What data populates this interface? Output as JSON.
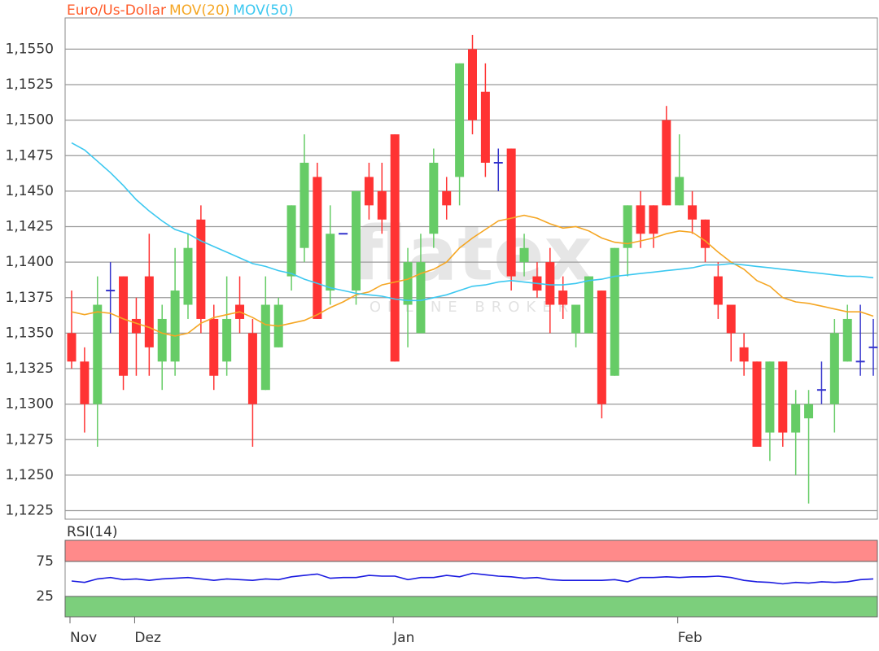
{
  "chart_data": [
    {
      "type": "candlestick",
      "series": [
        {
          "name": "Euro/Us-Dollar",
          "color": "#ff5a28",
          "colors": {
            "up": "#66cc66",
            "down": "#ff3333",
            "unchanged": "#3333cc"
          },
          "open": [
            1.135,
            1.133,
            1.13,
            1.138,
            1.139,
            1.136,
            1.139,
            1.133,
            1.133,
            1.137,
            1.143,
            1.136,
            1.133,
            1.137,
            1.135,
            1.131,
            1.134,
            1.139,
            1.141,
            1.146,
            1.138,
            1.142,
            1.138,
            1.146,
            1.145,
            1.149,
            1.137,
            1.135,
            1.142,
            1.145,
            1.146,
            1.155,
            1.152,
            1.147,
            1.148,
            1.14,
            1.139,
            1.14,
            1.138,
            1.135,
            1.135,
            1.138,
            1.132,
            1.141,
            1.144,
            1.144,
            1.15,
            1.144,
            1.144,
            1.143,
            1.139,
            1.137,
            1.134,
            1.133,
            1.128,
            1.133,
            1.128,
            1.129,
            1.131,
            1.13,
            1.133,
            1.133,
            1.134
          ],
          "high": [
            1.138,
            1.134,
            1.139,
            1.14,
            1.139,
            1.1375,
            1.142,
            1.137,
            1.141,
            1.142,
            1.144,
            1.137,
            1.139,
            1.139,
            1.136,
            1.139,
            1.1375,
            1.144,
            1.149,
            1.147,
            1.144,
            1.142,
            1.145,
            1.147,
            1.147,
            1.149,
            1.141,
            1.142,
            1.148,
            1.146,
            1.154,
            1.156,
            1.154,
            1.148,
            1.148,
            1.142,
            1.14,
            1.141,
            1.139,
            1.137,
            1.139,
            1.138,
            1.141,
            1.144,
            1.145,
            1.144,
            1.151,
            1.149,
            1.145,
            1.143,
            1.14,
            1.137,
            1.135,
            1.133,
            1.133,
            1.133,
            1.131,
            1.131,
            1.133,
            1.136,
            1.137,
            1.137,
            1.136
          ],
          "low": [
            1.1325,
            1.128,
            1.127,
            1.135,
            1.131,
            1.132,
            1.132,
            1.131,
            1.132,
            1.136,
            1.135,
            1.131,
            1.132,
            1.135,
            1.127,
            1.131,
            1.134,
            1.138,
            1.14,
            1.136,
            1.137,
            1.142,
            1.137,
            1.143,
            1.142,
            1.133,
            1.134,
            1.135,
            1.141,
            1.143,
            1.144,
            1.149,
            1.146,
            1.145,
            1.138,
            1.139,
            1.1375,
            1.135,
            1.136,
            1.134,
            1.135,
            1.129,
            1.132,
            1.139,
            1.141,
            1.141,
            1.144,
            1.144,
            1.142,
            1.14,
            1.136,
            1.133,
            1.132,
            1.127,
            1.126,
            1.127,
            1.125,
            1.123,
            1.13,
            1.128,
            1.133,
            1.132,
            1.132
          ],
          "close": [
            1.133,
            1.13,
            1.137,
            1.138,
            1.132,
            1.135,
            1.134,
            1.136,
            1.138,
            1.141,
            1.136,
            1.132,
            1.136,
            1.136,
            1.13,
            1.137,
            1.137,
            1.144,
            1.147,
            1.136,
            1.142,
            1.142,
            1.145,
            1.144,
            1.143,
            1.133,
            1.14,
            1.14,
            1.147,
            1.144,
            1.154,
            1.15,
            1.147,
            1.147,
            1.139,
            1.141,
            1.138,
            1.137,
            1.137,
            1.137,
            1.139,
            1.13,
            1.141,
            1.144,
            1.142,
            1.142,
            1.144,
            1.146,
            1.143,
            1.141,
            1.137,
            1.135,
            1.133,
            1.127,
            1.133,
            1.128,
            1.13,
            1.13,
            1.131,
            1.135,
            1.136,
            1.133,
            1.134
          ]
        },
        {
          "name": "MOV(20)",
          "color": "#f5a623",
          "values": [
            1.1365,
            1.1363,
            1.1365,
            1.1364,
            1.136,
            1.1357,
            1.1354,
            1.135,
            1.1348,
            1.135,
            1.1357,
            1.1361,
            1.1363,
            1.1365,
            1.1361,
            1.1356,
            1.1355,
            1.1357,
            1.1359,
            1.1363,
            1.1368,
            1.1372,
            1.1377,
            1.1379,
            1.1384,
            1.1386,
            1.1388,
            1.1392,
            1.1395,
            1.14,
            1.141,
            1.1417,
            1.1423,
            1.1429,
            1.1431,
            1.1433,
            1.1431,
            1.1427,
            1.1424,
            1.1425,
            1.1422,
            1.1417,
            1.1414,
            1.1413,
            1.1415,
            1.1417,
            1.142,
            1.1422,
            1.1421,
            1.1415,
            1.1407,
            1.14,
            1.1395,
            1.1387,
            1.1383,
            1.1375,
            1.1372,
            1.1371,
            1.1369,
            1.1367,
            1.1365,
            1.1365,
            1.1362
          ]
        },
        {
          "name": "MOV(50)",
          "color": "#3cc8f0",
          "values": [
            1.1484,
            1.1479,
            1.1471,
            1.1463,
            1.1454,
            1.1444,
            1.1436,
            1.1429,
            1.1423,
            1.142,
            1.1415,
            1.1411,
            1.1407,
            1.1403,
            1.1399,
            1.1397,
            1.1394,
            1.1392,
            1.1388,
            1.1385,
            1.1382,
            1.138,
            1.1378,
            1.1377,
            1.1376,
            1.1374,
            1.1373,
            1.1373,
            1.1375,
            1.1377,
            1.138,
            1.1383,
            1.1384,
            1.1386,
            1.1387,
            1.1386,
            1.1385,
            1.1384,
            1.1384,
            1.1385,
            1.1387,
            1.1388,
            1.139,
            1.1391,
            1.1392,
            1.1393,
            1.1394,
            1.1395,
            1.1396,
            1.1398,
            1.1398,
            1.1399,
            1.1398,
            1.1397,
            1.1396,
            1.1395,
            1.1394,
            1.1393,
            1.1392,
            1.1391,
            1.139,
            1.139,
            1.1389
          ]
        }
      ],
      "categories": [
        "Nov",
        null,
        null,
        null,
        null,
        "Dez",
        null,
        null,
        null,
        null,
        null,
        null,
        null,
        null,
        null,
        null,
        null,
        null,
        null,
        null,
        null,
        null,
        null,
        null,
        null,
        "Jan",
        null,
        null,
        null,
        null,
        null,
        null,
        null,
        null,
        null,
        null,
        null,
        null,
        null,
        null,
        null,
        null,
        null,
        null,
        null,
        null,
        null,
        "Feb",
        null,
        null,
        null,
        null,
        null,
        null,
        null,
        null,
        null,
        null,
        null,
        null,
        null,
        null,
        null
      ],
      "ylim": [
        1.1219,
        1.1572
      ],
      "yticks": [
        {
          "value": 1.1225,
          "label": "1,1225"
        },
        {
          "value": 1.125,
          "label": "1,1250"
        },
        {
          "value": 1.1275,
          "label": "1,1275"
        },
        {
          "value": 1.13,
          "label": "1,1300"
        },
        {
          "value": 1.1325,
          "label": "1,1325"
        },
        {
          "value": 1.135,
          "label": "1,1350"
        },
        {
          "value": 1.1375,
          "label": "1,1375"
        },
        {
          "value": 1.14,
          "label": "1,1400"
        },
        {
          "value": 1.1425,
          "label": "1,1425"
        },
        {
          "value": 1.145,
          "label": "1,1450"
        },
        {
          "value": 1.1475,
          "label": "1,1475"
        },
        {
          "value": 1.15,
          "label": "1,1500"
        },
        {
          "value": 1.1525,
          "label": "1,1525"
        },
        {
          "value": 1.155,
          "label": "1,1550"
        }
      ],
      "grid": true,
      "watermark": {
        "logo": "flatex",
        "tagline": "ONLINE BROKER"
      }
    },
    {
      "type": "line",
      "title": "RSI(14)",
      "series": [
        {
          "name": "RSI(14)",
          "color": "#1a1ae0",
          "values": [
            47,
            45,
            50,
            52,
            49,
            50,
            48,
            50,
            51,
            52,
            50,
            48,
            50,
            49,
            48,
            50,
            49,
            53,
            55,
            57,
            51,
            52,
            52,
            55,
            54,
            54,
            49,
            52,
            52,
            55,
            53,
            58,
            56,
            54,
            53,
            51,
            52,
            49,
            48,
            48,
            48,
            48,
            49,
            46,
            52,
            52,
            53,
            52,
            53,
            53,
            54,
            52,
            48,
            46,
            45,
            43,
            45,
            44,
            46,
            45,
            46,
            49,
            50
          ]
        }
      ],
      "ylim": [
        -4,
        105
      ],
      "yticks": [
        25,
        75
      ],
      "grid": true,
      "upper_band_color": "#ff8a8a",
      "lower_band_color": "#7ccf7c"
    }
  ]
}
